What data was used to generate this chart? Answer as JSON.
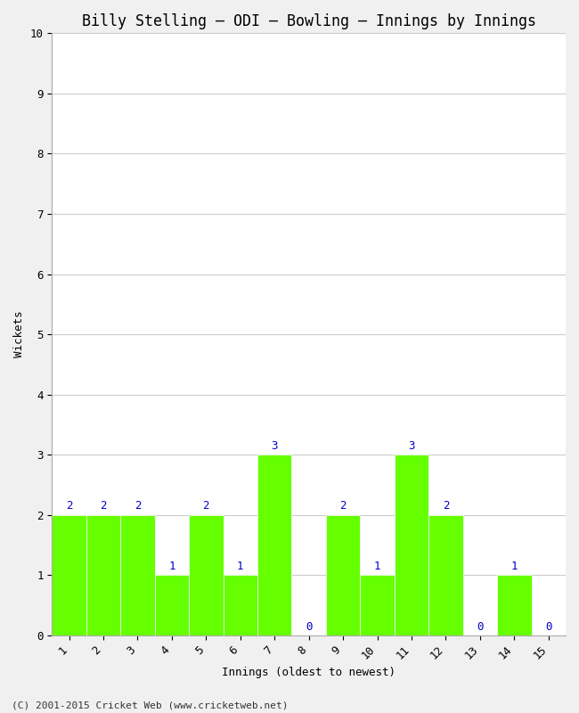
{
  "title": "Billy Stelling – ODI – Bowling – Innings by Innings",
  "xlabel": "Innings (oldest to newest)",
  "ylabel": "Wickets",
  "innings": [
    1,
    2,
    3,
    4,
    5,
    6,
    7,
    8,
    9,
    10,
    11,
    12,
    13,
    14,
    15
  ],
  "wickets": [
    2,
    2,
    2,
    1,
    2,
    1,
    3,
    0,
    2,
    1,
    3,
    2,
    0,
    1,
    0
  ],
  "bar_color": "#66ff00",
  "bar_edge_color": "#66ff00",
  "ylim": [
    0,
    10
  ],
  "yticks": [
    0,
    1,
    2,
    3,
    4,
    5,
    6,
    7,
    8,
    9,
    10
  ],
  "label_color": "#0000cc",
  "background_color": "#f0f0f0",
  "plot_bg_color": "#ffffff",
  "grid_color": "#cccccc",
  "footer": "(C) 2001-2015 Cricket Web (www.cricketweb.net)",
  "title_fontsize": 12,
  "label_fontsize": 9,
  "tick_fontsize": 9,
  "annot_fontsize": 9,
  "footer_fontsize": 8,
  "font_family": "monospace"
}
